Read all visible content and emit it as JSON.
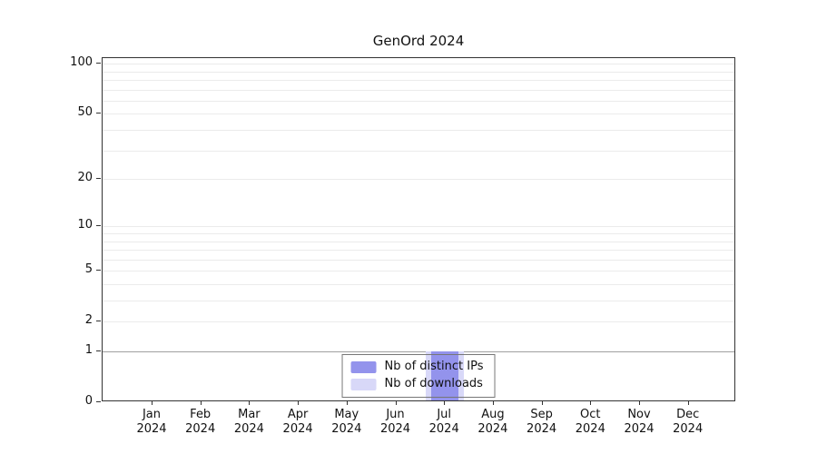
{
  "chart_data": {
    "type": "bar",
    "title": "GenOrd 2024",
    "months": [
      "Jan",
      "Feb",
      "Mar",
      "Apr",
      "May",
      "Jun",
      "Jul",
      "Aug",
      "Sep",
      "Oct",
      "Nov",
      "Dec"
    ],
    "year": "2024",
    "series": [
      {
        "name": "Nb of distinct IPs",
        "color": "#9393ec",
        "values": [
          0,
          0,
          0,
          0,
          0,
          0,
          1,
          0,
          0,
          0,
          0,
          0
        ]
      },
      {
        "name": "Nb of downloads",
        "color": "#d8d8f8",
        "values": [
          0,
          0,
          0,
          0,
          0,
          0,
          1,
          0,
          0,
          0,
          0,
          0
        ]
      }
    ],
    "y_ticks": [
      0,
      1,
      2,
      5,
      10,
      20,
      50,
      100
    ],
    "y_scale": "log1p",
    "ylim": [
      0,
      100
    ],
    "grid_values": [
      1,
      2,
      3,
      4,
      5,
      6,
      7,
      8,
      9,
      10,
      20,
      30,
      40,
      50,
      60,
      70,
      80,
      90,
      100
    ],
    "emphasized_grid_value": 1,
    "grid_color": "#ebebeb",
    "emphasized_grid_color": "#a0a0a0",
    "legend_position": "bottom-center"
  }
}
